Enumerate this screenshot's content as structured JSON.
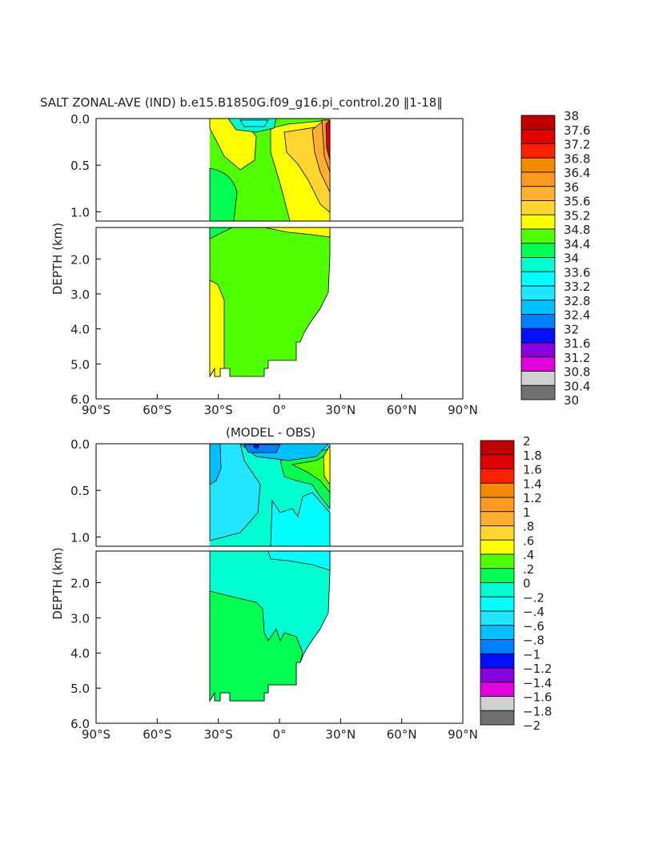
{
  "chart_data": [
    {
      "type": "heatmap",
      "title": "SALT ZONAL-AVE (IND) b.e15.B1850G.f09_g16.pi_control.20 ‖1-18‖",
      "xlabel": "",
      "ylabel": "DEPTH (km)",
      "xlim": [
        -90,
        90
      ],
      "ylim": [
        6.0,
        0.0
      ],
      "x_ticks": [
        "90°S",
        "60°S",
        "30°S",
        "0°",
        "30°N",
        "60°N",
        "90°N"
      ],
      "y_ticks_upper": [
        "0.0",
        "0.5",
        "1.0"
      ],
      "y_ticks_lower": [
        "2.0",
        "3.0",
        "4.0",
        "5.0",
        "6.0"
      ],
      "colorbar": {
        "labels": [
          "38",
          "37.6",
          "37.2",
          "36.8",
          "36.4",
          "36",
          "35.6",
          "35.2",
          "34.8",
          "34.4",
          "34",
          "33.6",
          "33.2",
          "32.8",
          "32.4",
          "32",
          "31.6",
          "31.2",
          "30.8",
          "30.4",
          "30"
        ],
        "colors": [
          "#c00000",
          "#e00000",
          "#ff2000",
          "#f58a00",
          "#ff9a20",
          "#ffb030",
          "#ffd530",
          "#ffff00",
          "#50ff00",
          "#00ff50",
          "#00ffd0",
          "#00ffff",
          "#20e6ff",
          "#00c0ff",
          "#0080ff",
          "#0010ff",
          "#8800dd",
          "#e000e0",
          "#d0d0d0",
          "#707070"
        ]
      }
    },
    {
      "type": "heatmap",
      "title": "(MODEL - OBS)",
      "xlabel": "",
      "ylabel": "DEPTH (km)",
      "xlim": [
        -90,
        90
      ],
      "ylim": [
        6.0,
        0.0
      ],
      "x_ticks": [
        "90°S",
        "60°S",
        "30°S",
        "0°",
        "30°N",
        "60°N",
        "90°N"
      ],
      "y_ticks_upper": [
        "0.0",
        "0.5",
        "1.0"
      ],
      "y_ticks_lower": [
        "2.0",
        "3.0",
        "4.0",
        "5.0",
        "6.0"
      ],
      "colorbar": {
        "labels": [
          "2",
          "1.8",
          "1.6",
          "1.4",
          "1.2",
          "1",
          ".8",
          ".6",
          ".4",
          ".2",
          "0",
          "−.2",
          "−.4",
          "−.6",
          "−.8",
          "−1",
          "−1.2",
          "−1.4",
          "−1.6",
          "−1.8",
          "−2"
        ],
        "colors": [
          "#c00000",
          "#e00000",
          "#ff2000",
          "#f58a00",
          "#ff9a20",
          "#ffb030",
          "#ffd530",
          "#ffff00",
          "#50ff00",
          "#00ff50",
          "#00ffd0",
          "#00ffff",
          "#20e6ff",
          "#00c0ff",
          "#0080ff",
          "#0010ff",
          "#8800dd",
          "#e000e0",
          "#d0d0d0",
          "#707070"
        ]
      }
    }
  ]
}
